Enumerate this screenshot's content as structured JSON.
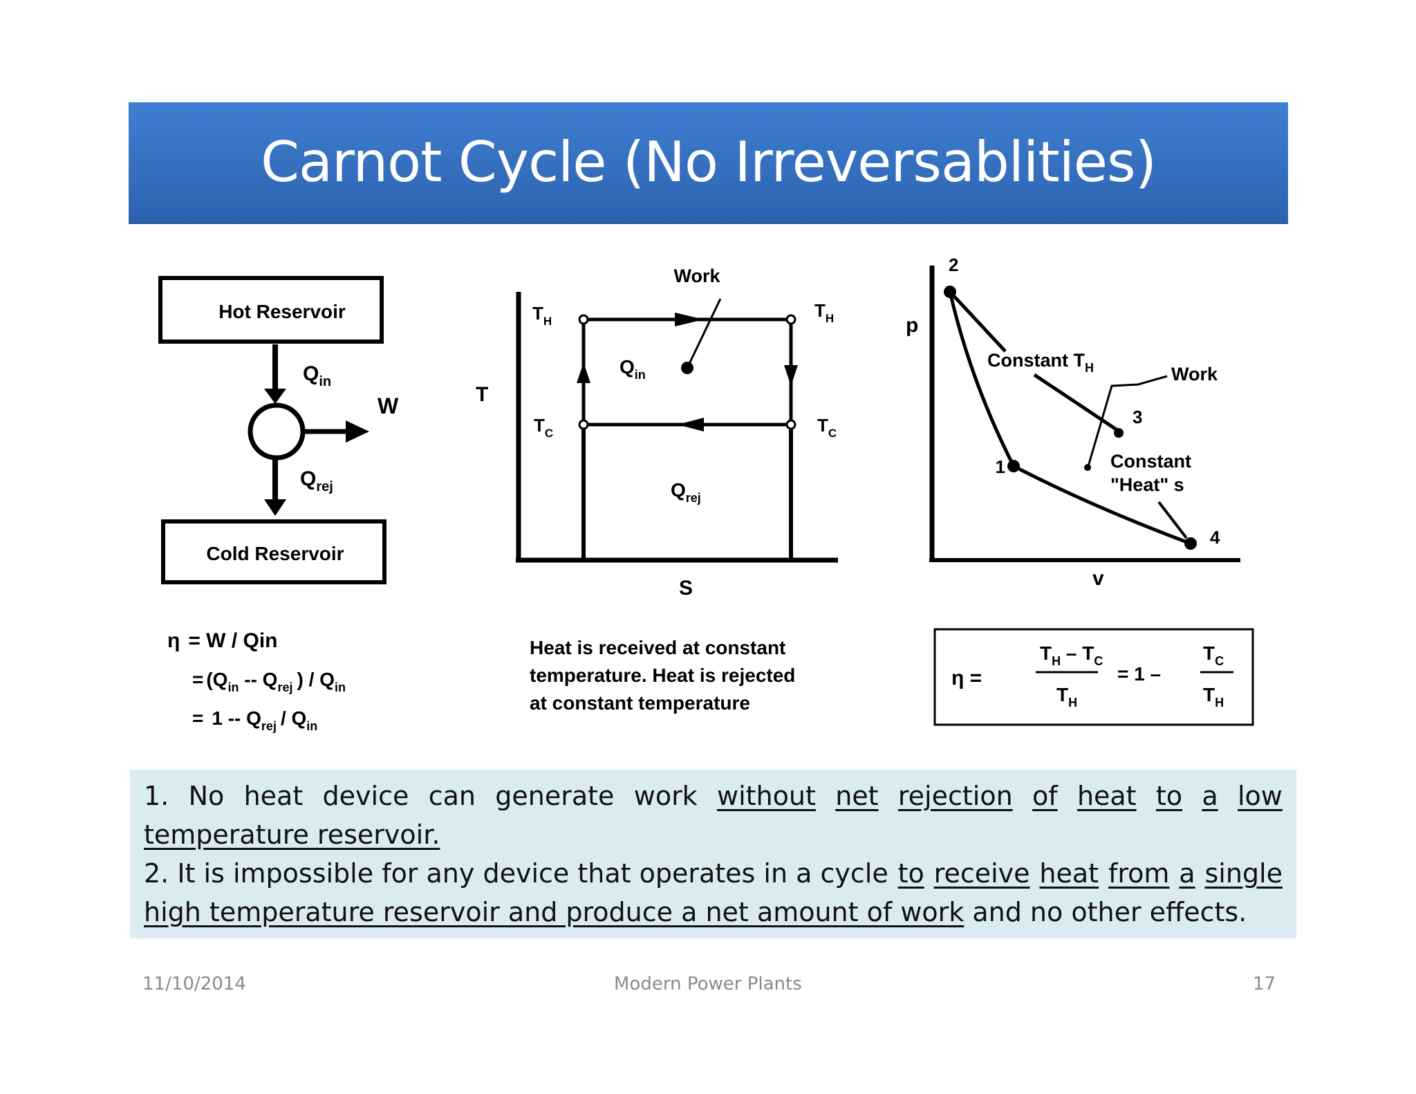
{
  "title": "Carnot Cycle (No Irreversablities)",
  "figure": {
    "reservoir": {
      "hot_label": "Hot Reservoir",
      "cold_label": "Cold Reservoir",
      "q_in": "Q",
      "q_in_sub": "in",
      "w": "W",
      "q_rej": "Q",
      "q_rej_sub": "rej"
    },
    "eff_formula": {
      "eta": "η",
      "line1": "= W / Qin",
      "eq": "=",
      "line2_open": "(Q",
      "line2_sub_in": "in",
      "line2_minus": " -- Q",
      "line2_sub_rej": "rej",
      "line2_close": ") / Q",
      "line2_sub_in2": "in",
      "line3_start": "1 -- Q",
      "line3_sub_rej": "rej",
      "line3_div": "/ Q",
      "line3_sub_in": "in"
    },
    "ts_diagram": {
      "y_label": "T",
      "x_label": "S",
      "work": "Work",
      "th": "T",
      "th_sub": "H",
      "tc": "T",
      "tc_sub": "C",
      "qin": "Q",
      "qin_sub": "in",
      "qrej": "Q",
      "qrej_sub": "rej",
      "caption": [
        "Heat is received at constant",
        "temperature. Heat is rejected",
        "at constant temperature"
      ]
    },
    "pv_diagram": {
      "y_label": "p",
      "x_label": "v",
      "pt1": "1",
      "pt2": "2",
      "pt3": "3",
      "pt4": "4",
      "const_th": "Constant T",
      "const_th_sub": "H",
      "work": "Work",
      "const_heat_1": "Constant",
      "const_heat_2": "\"Heat\" s"
    },
    "eff_box": {
      "eta": "η =",
      "num_left": "T",
      "num_left_sub": "H",
      "num_minus": " – T",
      "num_right_sub": "C",
      "den": "T",
      "den_sub": "H",
      "eq_one": "= 1 –",
      "num2": "T",
      "num2_sub": "C",
      "den2": "T",
      "den2_sub": "H"
    }
  },
  "notes": {
    "p1_a": "1.",
    "p1_words": [
      "No",
      "heat",
      "device",
      "can",
      "generate",
      "work"
    ],
    "p1_u_words": [
      "without",
      "net",
      "rejection",
      "of",
      "heat",
      "to",
      "a",
      "low"
    ],
    "p1_u2": "temperature reservoir.",
    "p2_a": "2. It is impossible for any device that operates in a cycle",
    "p2_u1_words": [
      "to",
      "receive",
      "heat",
      "from",
      "a",
      "single"
    ],
    "p2_u2": "high temperature reservoir and produce a net amount of work",
    "p2_b": " and no other effects."
  },
  "footer": {
    "date": "11/10/2014",
    "center": "Modern Power Plants",
    "page": "17"
  }
}
